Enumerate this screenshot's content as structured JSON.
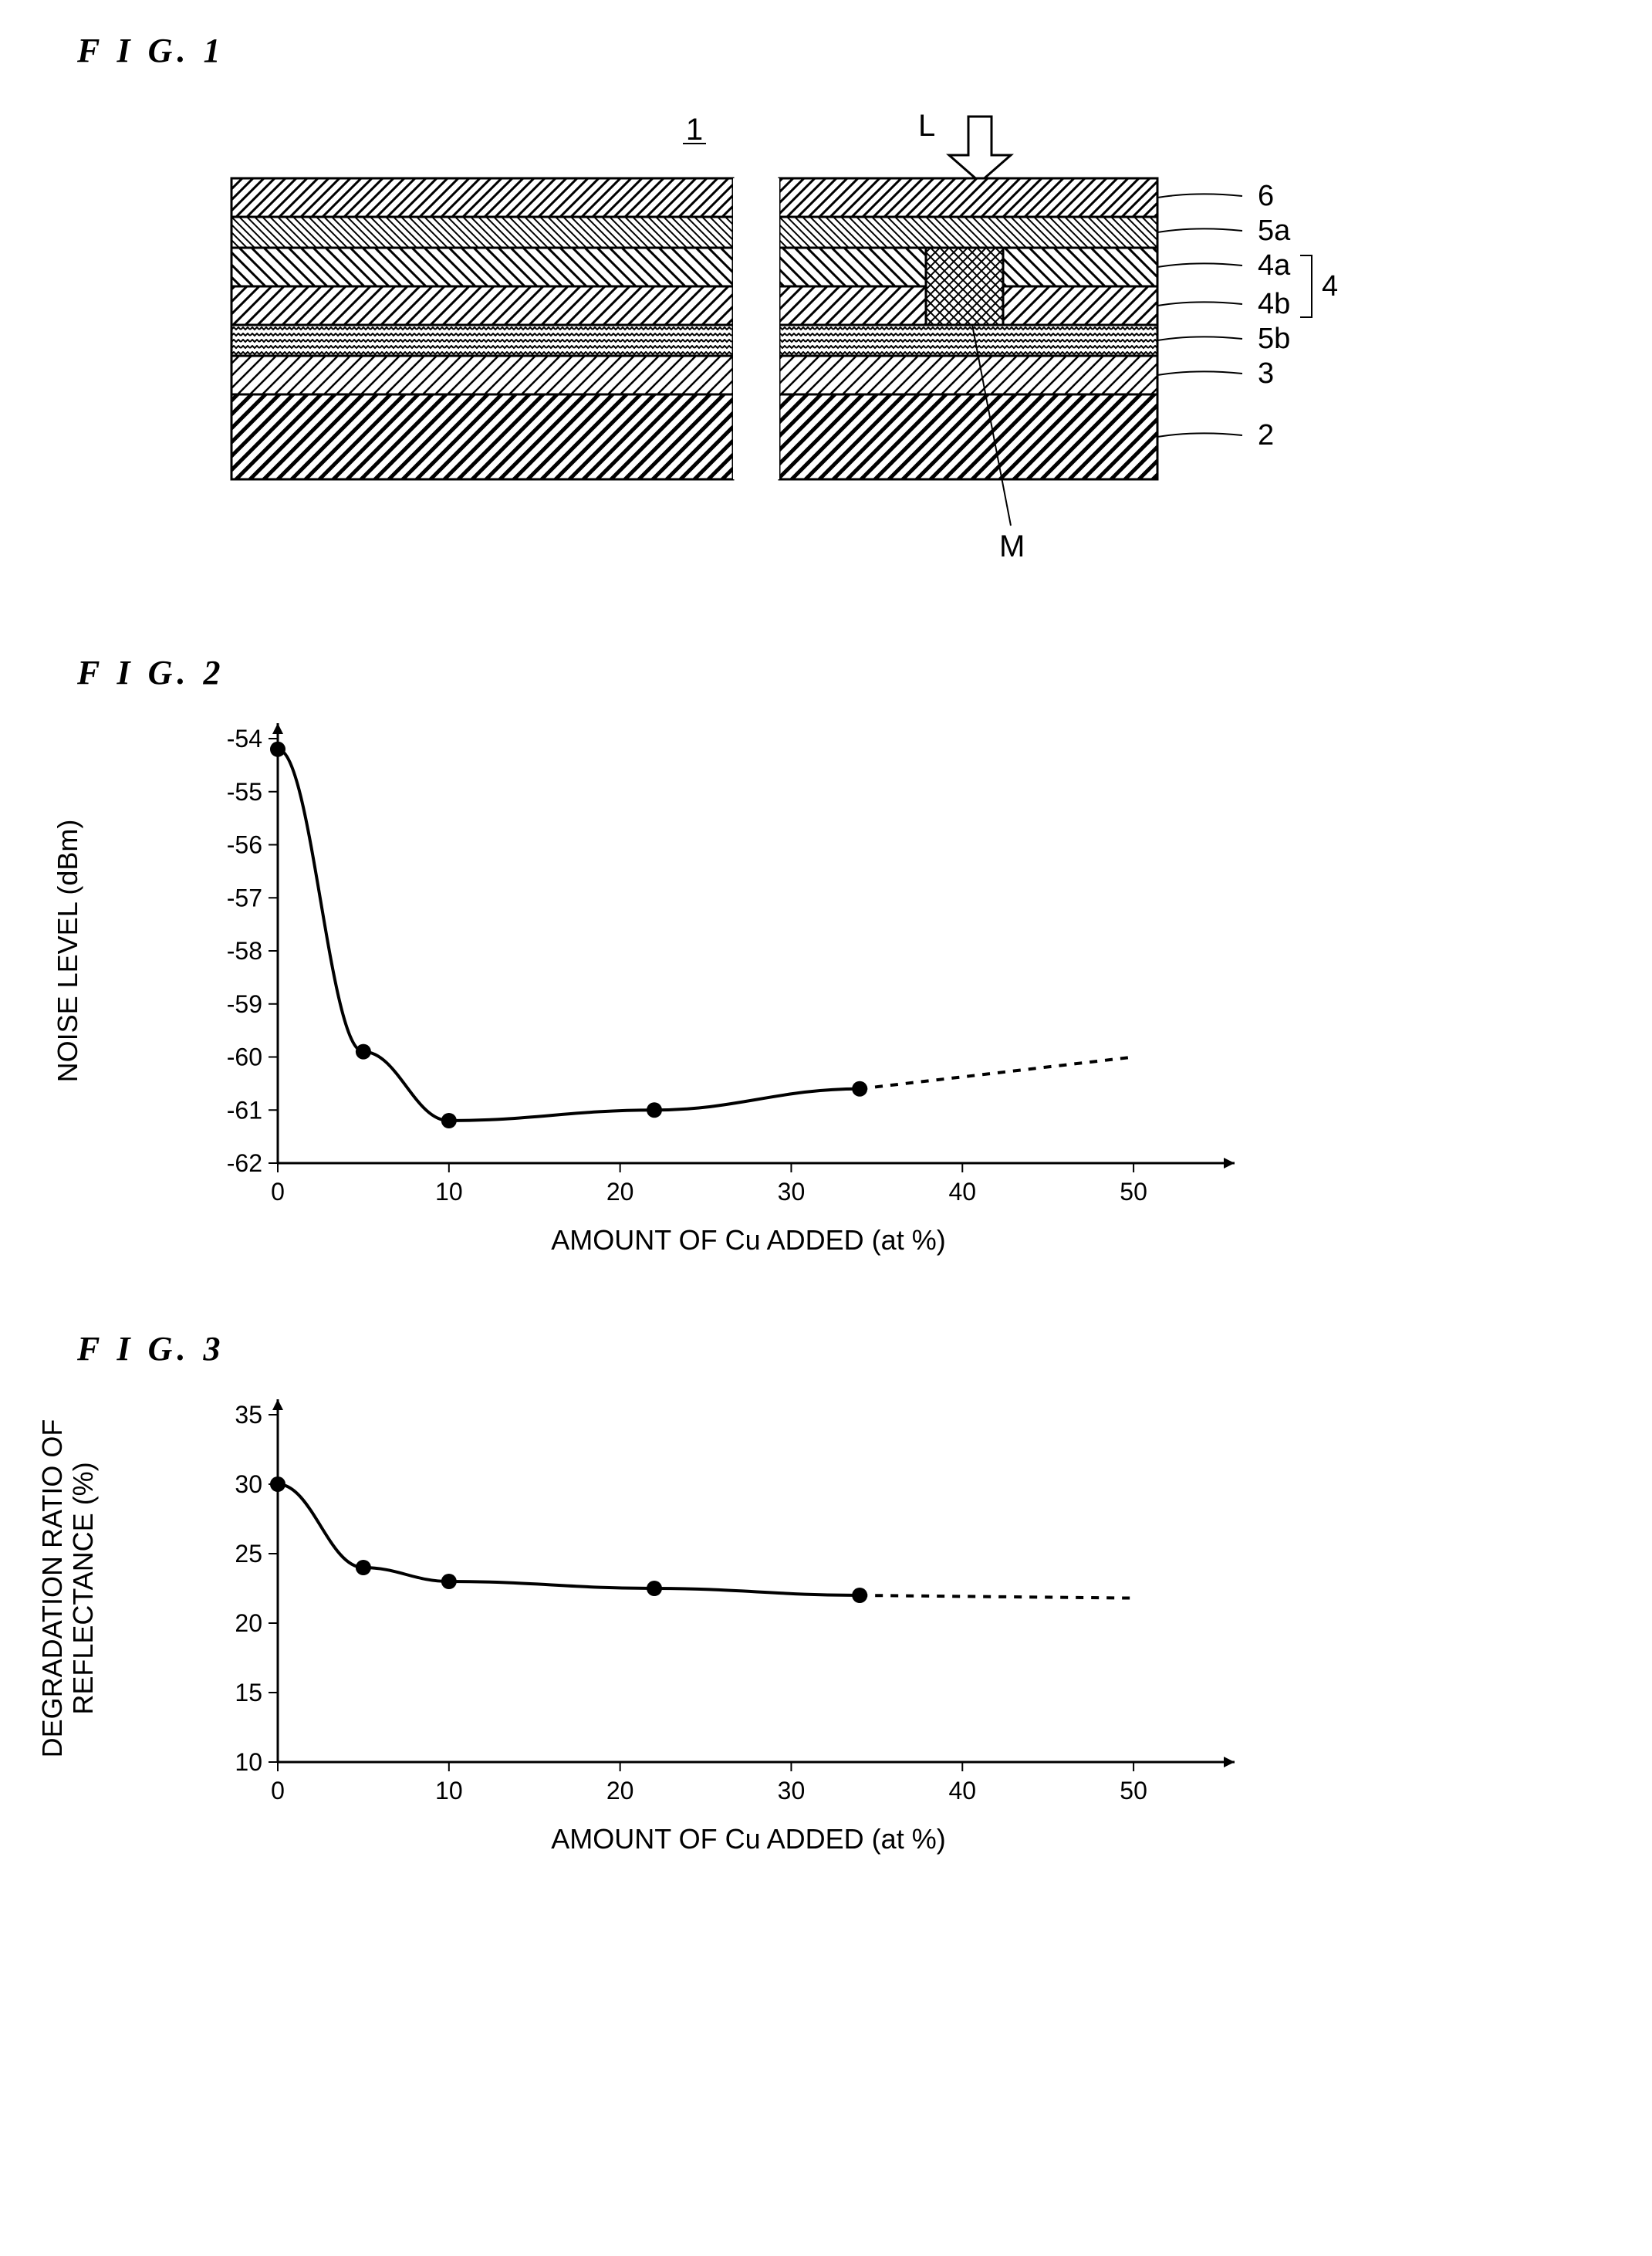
{
  "fig1": {
    "label": "F I G. 1",
    "type": "diagram",
    "title_label": "1",
    "arrow_label": "L",
    "labels": [
      "6",
      "5a",
      "4a",
      "4b",
      "5b",
      "3",
      "2"
    ],
    "bracket_label": "4",
    "mark_label": "M",
    "layer_heights": [
      50,
      40,
      50,
      50,
      40,
      50,
      110
    ],
    "gap_left": 650,
    "gap_width": 60,
    "total_width": 1200,
    "stroke_color": "#000000",
    "background_color": "#ffffff"
  },
  "fig2": {
    "label": "F I G. 2",
    "type": "line",
    "xlabel": "AMOUNT OF Cu ADDED (at %)",
    "ylabel": "NOISE LEVEL (dBm)",
    "x_values": [
      0,
      5,
      10,
      22,
      34
    ],
    "y_values": [
      -54.2,
      -59.9,
      -61.2,
      -61.0,
      -60.6
    ],
    "dashed_extension": {
      "x_start": 34,
      "y_start": -60.6,
      "x_end": 50,
      "y_end": -60.0
    },
    "xlim": [
      0,
      55
    ],
    "ylim": [
      -62,
      -54
    ],
    "xticks": [
      0,
      10,
      20,
      30,
      40,
      50
    ],
    "yticks": [
      -62,
      -61,
      -60,
      -59,
      -58,
      -57,
      -56,
      -55,
      -54
    ],
    "line_color": "#000000",
    "marker_color": "#000000",
    "marker_size": 10,
    "line_width": 4,
    "axis_font_size": 32,
    "label_font_size": 36,
    "background_color": "#ffffff"
  },
  "fig3": {
    "label": "F I G. 3",
    "type": "line",
    "xlabel": "AMOUNT OF Cu ADDED (at %)",
    "ylabel": "DEGRADATION RATIO OF\nREFLECTANCE (%)",
    "x_values": [
      0,
      5,
      10,
      22,
      34
    ],
    "y_values": [
      30,
      24,
      23,
      22.5,
      22
    ],
    "dashed_extension": {
      "x_start": 34,
      "y_start": 22,
      "x_end": 50,
      "y_end": 21.8
    },
    "xlim": [
      0,
      55
    ],
    "ylim": [
      10,
      35
    ],
    "xticks": [
      0,
      10,
      20,
      30,
      40,
      50
    ],
    "yticks": [
      10,
      15,
      20,
      25,
      30,
      35
    ],
    "line_color": "#000000",
    "marker_color": "#000000",
    "marker_size": 10,
    "line_width": 4,
    "axis_font_size": 32,
    "label_font_size": 36,
    "background_color": "#ffffff"
  }
}
